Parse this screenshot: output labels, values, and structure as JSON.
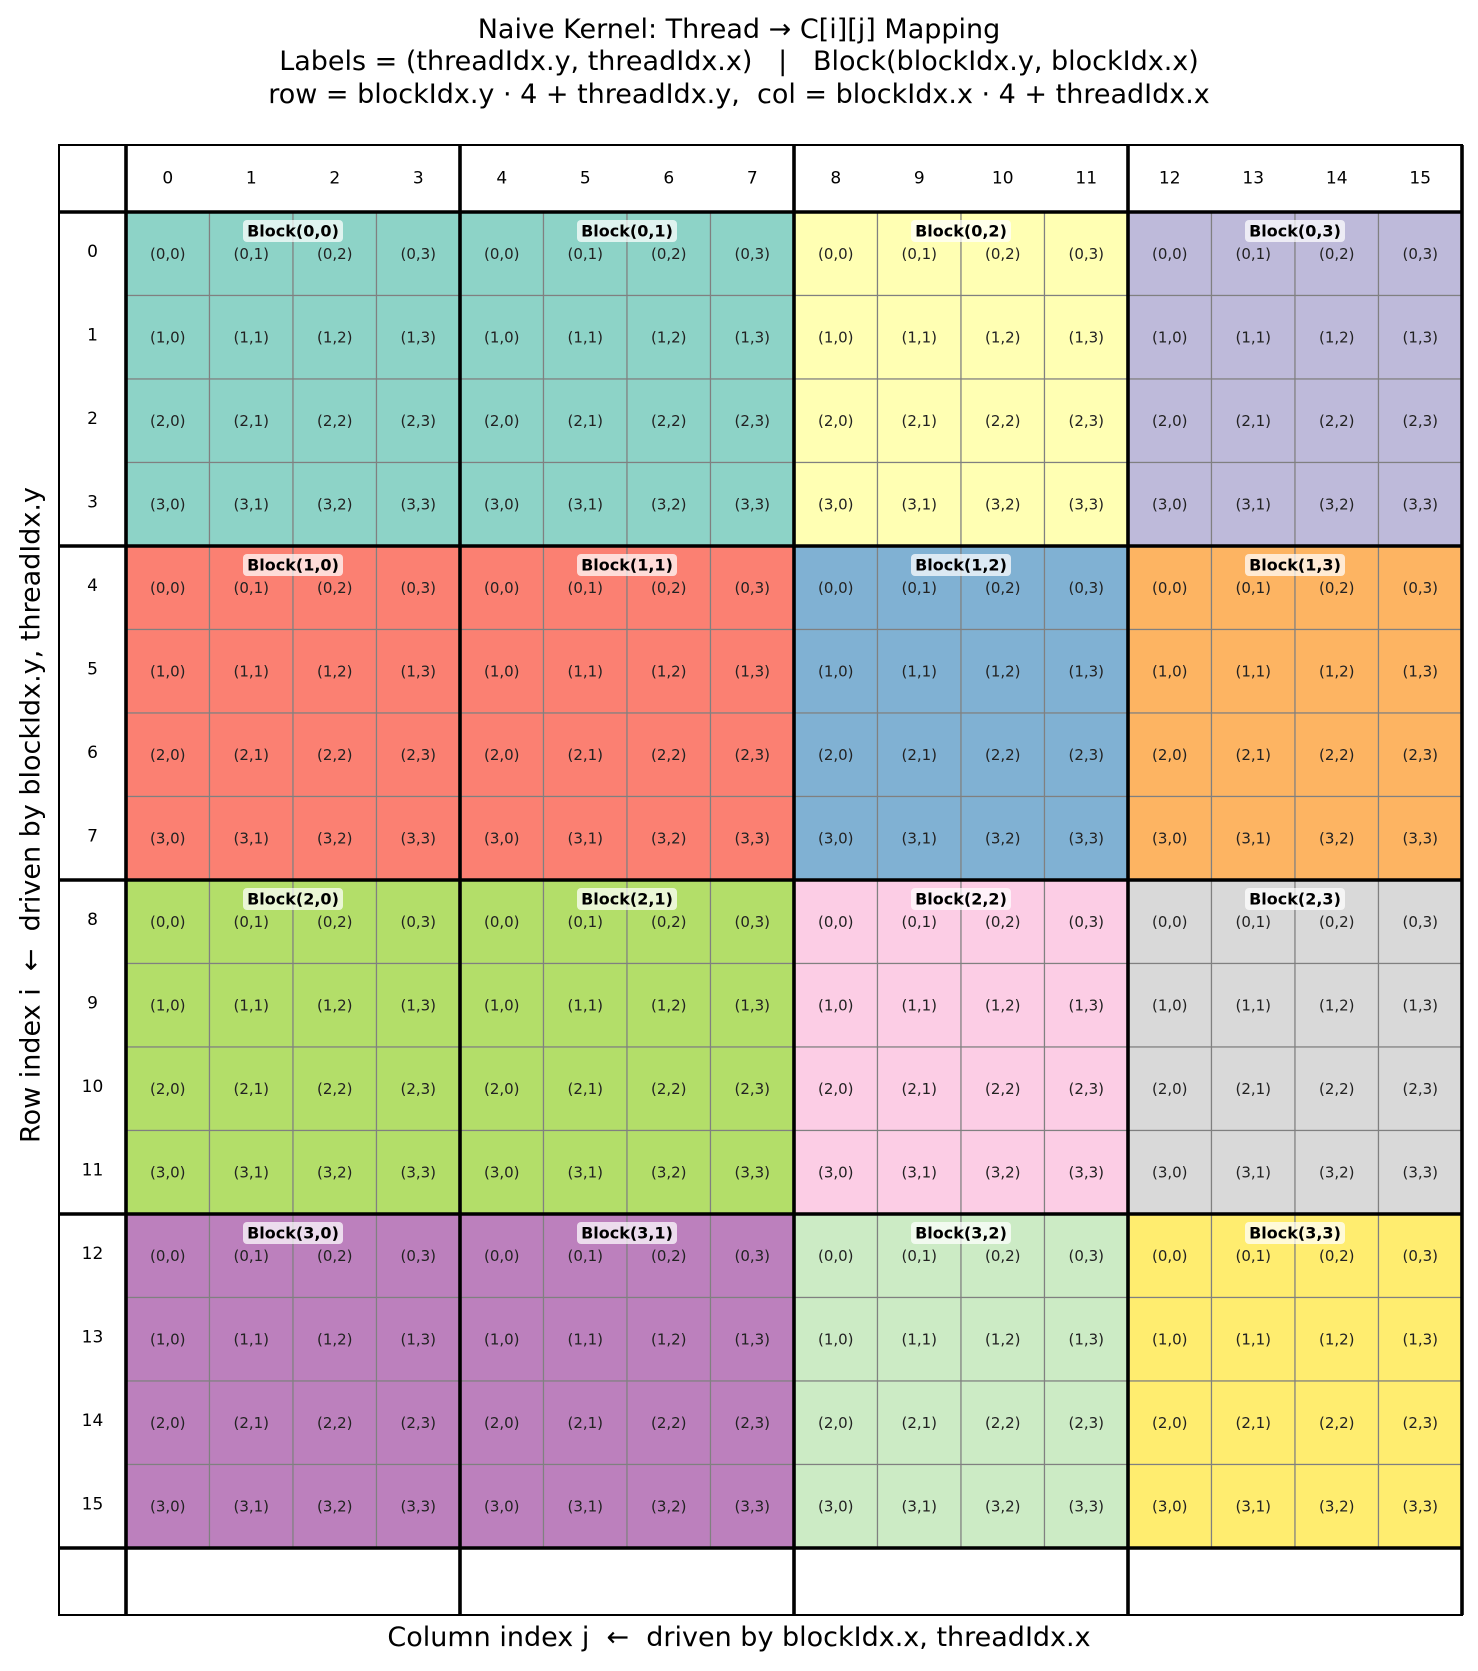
{
  "title_lines": [
    "Naive Kernel: Thread → C[i][j] Mapping",
    "Labels = (threadIdx.y, threadIdx.x)   |   Block(blockIdx.y, blockIdx.x)",
    "row = blockIdx.y · 4 + threadIdx.y,  col = blockIdx.x · 4 + threadIdx.x"
  ],
  "ylabel": "Row index i  ←  driven by blockIdx.y, threadIdx.y",
  "xlabel": "Column index j  ←  driven by blockIdx.x, threadIdx.x",
  "column_headers": [
    "0",
    "1",
    "2",
    "3",
    "4",
    "5",
    "6",
    "7",
    "8",
    "9",
    "10",
    "11",
    "12",
    "13",
    "14",
    "15"
  ],
  "row_headers": [
    "0",
    "1",
    "2",
    "3",
    "4",
    "5",
    "6",
    "7",
    "8",
    "9",
    "10",
    "11",
    "12",
    "13",
    "14",
    "15"
  ],
  "block_size": 4,
  "thread_labels": [
    [
      "(0,0)",
      "(0,1)",
      "(0,2)",
      "(0,3)"
    ],
    [
      "(1,0)",
      "(1,1)",
      "(1,2)",
      "(1,3)"
    ],
    [
      "(2,0)",
      "(2,1)",
      "(2,2)",
      "(2,3)"
    ],
    [
      "(3,0)",
      "(3,1)",
      "(3,2)",
      "(3,3)"
    ]
  ],
  "blocks": [
    {
      "label": "Block(0,0)",
      "color": "#8dd3c7"
    },
    {
      "label": "Block(0,1)",
      "color": "#8dd3c7"
    },
    {
      "label": "Block(0,2)",
      "color": "#ffffb3"
    },
    {
      "label": "Block(0,3)",
      "color": "#bebada"
    },
    {
      "label": "Block(1,0)",
      "color": "#fb8072"
    },
    {
      "label": "Block(1,1)",
      "color": "#fb8072"
    },
    {
      "label": "Block(1,2)",
      "color": "#80b1d3"
    },
    {
      "label": "Block(1,3)",
      "color": "#fdb462"
    },
    {
      "label": "Block(2,0)",
      "color": "#b3de69"
    },
    {
      "label": "Block(2,1)",
      "color": "#b3de69"
    },
    {
      "label": "Block(2,2)",
      "color": "#fccde5"
    },
    {
      "label": "Block(2,3)",
      "color": "#d9d9d9"
    },
    {
      "label": "Block(3,0)",
      "color": "#bc80bd"
    },
    {
      "label": "Block(3,1)",
      "color": "#bc80bd"
    },
    {
      "label": "Block(3,2)",
      "color": "#ccebc5"
    },
    {
      "label": "Block(3,3)",
      "color": "#ffed6f"
    }
  ]
}
